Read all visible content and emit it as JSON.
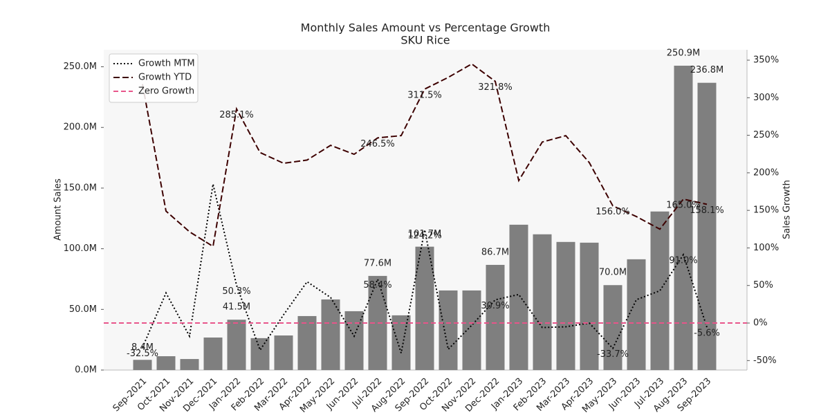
{
  "chart_data": {
    "type": "bar_line",
    "title": "Monthly Sales Amount vs Percentage Growth",
    "subtitle": "SKU Rice",
    "y_label": "Amount Sales",
    "y2_label": "Sales Growth",
    "categories": [
      "Sep-2021",
      "Oct-2021",
      "Nov-2021",
      "Dec-2021",
      "Jan-2022",
      "Feb-2022",
      "Mar-2022",
      "Apr-2022",
      "May-2022",
      "Jun-2022",
      "Jul-2022",
      "Aug-2022",
      "Sep-2022",
      "Oct-2022",
      "Nov-2022",
      "Dec-2022",
      "Jan-2023",
      "Feb-2023",
      "Mar-2023",
      "Apr-2023",
      "May-2023",
      "Jun-2023",
      "Jul-2023",
      "Aug-2023",
      "Sep-2023"
    ],
    "series": [
      {
        "name": "Amount Sales",
        "kind": "bar",
        "axis": "y",
        "color": "#7f7f7f",
        "values": [
          8.4,
          11.4,
          9.1,
          26.8,
          41.5,
          26.3,
          28.5,
          44.5,
          58.2,
          48.5,
          77.6,
          45.1,
          101.7,
          65.6,
          65.6,
          86.7,
          119.8,
          111.9,
          105.6,
          105.0,
          70.0,
          91.3,
          130.7,
          250.9,
          236.8
        ],
        "value_labels": [
          "8.4M",
          null,
          null,
          null,
          "41.5M",
          null,
          null,
          null,
          null,
          null,
          "77.6M",
          null,
          "101.7M",
          null,
          null,
          "86.7M",
          null,
          null,
          null,
          null,
          "70.0M",
          null,
          null,
          "250.9M",
          "236.8M"
        ]
      },
      {
        "name": "Growth MTM",
        "kind": "line",
        "style": "dotted",
        "axis": "y2",
        "color": "#000000",
        "values": [
          -32.5,
          40,
          -17.5,
          185,
          50.3,
          -36,
          11,
          55,
          34,
          -17.5,
          58.4,
          -40,
          124.2,
          -35,
          -3,
          30.9,
          38,
          -6,
          -5,
          0,
          -33.7,
          31,
          43,
          91.0,
          -5.6
        ],
        "value_labels": [
          "-32.5%",
          null,
          null,
          null,
          "50.3%",
          null,
          null,
          null,
          null,
          null,
          "58.4%",
          null,
          "124.2%",
          null,
          null,
          "30.9%",
          null,
          null,
          null,
          null,
          "-33.7%",
          null,
          null,
          "91.0%",
          "-5.6%"
        ]
      },
      {
        "name": "Growth YTD",
        "kind": "line",
        "style": "dashed",
        "axis": "y2",
        "color": "#3d0000",
        "values": [
          318,
          149,
          121.5,
          102,
          285.1,
          227,
          212.7,
          217,
          236.6,
          224.7,
          246.5,
          249.5,
          311.5,
          327,
          345,
          321.8,
          189.7,
          241,
          249.5,
          213.6,
          156.0,
          141.8,
          125,
          165.0,
          158.1
        ],
        "value_labels": [
          null,
          null,
          null,
          null,
          "285.1%",
          null,
          null,
          null,
          null,
          null,
          "246.5%",
          null,
          "311.5%",
          null,
          null,
          "321.8%",
          null,
          null,
          null,
          null,
          "156.0%",
          null,
          null,
          "165.0%",
          "158.1%"
        ]
      }
    ],
    "reference_lines": [
      {
        "name": "Zero Growth",
        "value": 0,
        "axis": "y2",
        "color": "#e8558a"
      }
    ],
    "ylim": [
      0,
      264
    ],
    "yticks": [
      {
        "value": 0,
        "label": "0.0M"
      },
      {
        "value": 50,
        "label": "50.0M"
      },
      {
        "value": 100,
        "label": "100.0M"
      },
      {
        "value": 150,
        "label": "150.0M"
      },
      {
        "value": 200,
        "label": "200.0M"
      },
      {
        "value": 250,
        "label": "250.0M"
      }
    ],
    "y2lim": [
      -62.6,
      363.8
    ],
    "y2ticks": [
      {
        "value": -50,
        "label": "-50%"
      },
      {
        "value": 0,
        "label": "0%"
      },
      {
        "value": 50,
        "label": "50%"
      },
      {
        "value": 100,
        "label": "100%"
      },
      {
        "value": 150,
        "label": "150%"
      },
      {
        "value": 200,
        "label": "200%"
      },
      {
        "value": 250,
        "label": "250%"
      },
      {
        "value": 300,
        "label": "300%"
      },
      {
        "value": 350,
        "label": "350%"
      }
    ],
    "legend": "upper left",
    "background": "#f7f7f7"
  }
}
